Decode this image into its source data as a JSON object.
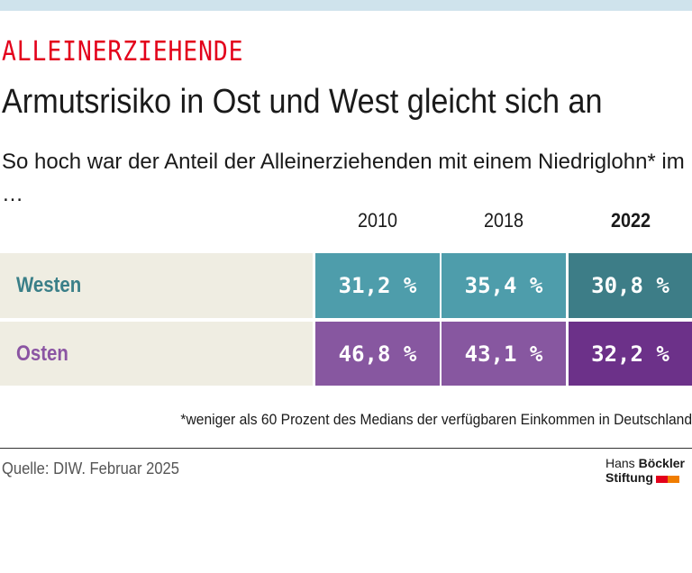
{
  "kicker": "ALLEINERZIEHENDE",
  "headline": "Armutsrisiko in Ost und West gleicht sich an",
  "subtitle": "So hoch war der Anteil der Alleinerziehenden mit einem Niedriglohn* im …",
  "columns": [
    "2010",
    "2018",
    "2022"
  ],
  "rows": [
    {
      "label": "Westen",
      "values": [
        "31,2 %",
        "35,4 %",
        "30,8 %"
      ]
    },
    {
      "label": "Osten",
      "values": [
        "46,8 %",
        "43,1 %",
        "32,2 %"
      ]
    }
  ],
  "footnote": "*weniger als 60 Prozent des Medians der verfügbaren Einkommen in Deutschland",
  "source": "Quelle: DIW. Februar 2025",
  "logo": {
    "line1a": "Hans ",
    "line1b": "Böckler",
    "line2": "Stiftung"
  },
  "colors": {
    "west": "#4e9dab",
    "west_highlight": "#3d7d87",
    "east": "#8757a0",
    "east_highlight": "#6c3189",
    "accent": "#e3001b"
  }
}
